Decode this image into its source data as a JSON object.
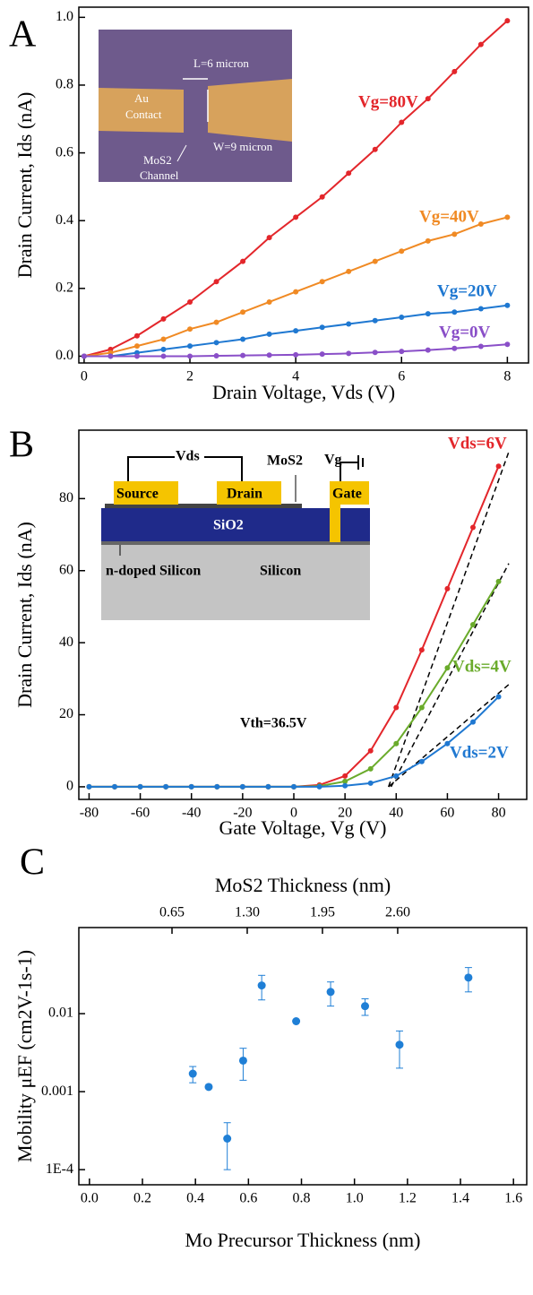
{
  "chart_data": [
    {
      "panel": "A",
      "type": "line",
      "x": [
        0,
        0.5,
        1,
        1.5,
        2,
        2.5,
        3,
        3.5,
        4,
        4.5,
        5,
        5.5,
        6,
        6.5,
        7,
        7.5,
        8
      ],
      "xlim": [
        -0.1,
        8.4
      ],
      "xticks": [
        0,
        2,
        4,
        6,
        8
      ],
      "ylim": [
        -0.02,
        1.03
      ],
      "yticks": [
        {
          "value": 0,
          "label": "0.0"
        },
        0.2,
        0.4,
        0.6,
        0.8,
        {
          "value": 1,
          "label": "1.0"
        }
      ],
      "x_label": "Drain Voltage, Vds (V)",
      "y_label": "Drain Current, Ids (nA)",
      "series": [
        {
          "name": "Vg=80V",
          "color": "#e3262b",
          "values": [
            0,
            0.02,
            0.06,
            0.11,
            0.16,
            0.22,
            0.28,
            0.35,
            0.41,
            0.47,
            0.54,
            0.61,
            0.69,
            0.76,
            0.84,
            0.92,
            0.99
          ]
        },
        {
          "name": "Vg=40V",
          "color": "#f08a24",
          "values": [
            0,
            0.01,
            0.03,
            0.05,
            0.08,
            0.1,
            0.13,
            0.16,
            0.19,
            0.22,
            0.25,
            0.28,
            0.31,
            0.34,
            0.36,
            0.39,
            0.41
          ]
        },
        {
          "name": "Vg=20V",
          "color": "#1f78d1",
          "values": [
            0,
            0,
            0.01,
            0.02,
            0.03,
            0.04,
            0.05,
            0.065,
            0.075,
            0.085,
            0.095,
            0.105,
            0.115,
            0.125,
            0.13,
            0.14,
            0.15
          ]
        },
        {
          "name": "Vg=0V",
          "color": "#8a4fc8",
          "values": [
            0,
            0,
            0,
            0,
            0,
            0.001,
            0.002,
            0.003,
            0.004,
            0.006,
            0.008,
            0.011,
            0.014,
            0.018,
            0.023,
            0.029,
            0.035
          ]
        }
      ],
      "annotations": [
        "L=6 micron",
        "Au",
        "Contact",
        "MoS2",
        "Channel",
        "W=9 micron"
      ]
    },
    {
      "panel": "B",
      "type": "line",
      "x": [
        -80,
        -70,
        -60,
        -50,
        -40,
        -30,
        -20,
        -10,
        0,
        10,
        20,
        30,
        40,
        50,
        60,
        70,
        80
      ],
      "xlim": [
        -84,
        91
      ],
      "xticks": [
        -80,
        -60,
        -40,
        -20,
        0,
        20,
        40,
        60,
        80
      ],
      "ylim": [
        -3.5,
        99
      ],
      "yticks": [
        0,
        20,
        40,
        60,
        80
      ],
      "x_label": "Gate Voltage, Vg (V)",
      "y_label": "Drain Current, Ids (nA)",
      "series": [
        {
          "name": "Vds=6V",
          "color": "#e3262b",
          "values": [
            0,
            0,
            0,
            0,
            0,
            0,
            0,
            0,
            0,
            0.5,
            3,
            10,
            22,
            38,
            55,
            72,
            89
          ]
        },
        {
          "name": "Vds=4V",
          "color": "#6aab2b",
          "values": [
            0,
            0,
            0,
            0,
            0,
            0,
            0,
            0,
            0,
            0.2,
            1.5,
            5,
            12,
            22,
            33,
            45,
            57
          ]
        },
        {
          "name": "Vds=2V",
          "color": "#1f78d1",
          "values": [
            0,
            0,
            0,
            0,
            0,
            0,
            0,
            0,
            0,
            0,
            0.3,
            1,
            3,
            7,
            12,
            18,
            25
          ]
        }
      ],
      "fits": [
        {
          "x": [
            37,
            84
          ],
          "values": [
            0,
            93
          ]
        },
        {
          "x": [
            38,
            84
          ],
          "values": [
            0,
            62
          ]
        },
        {
          "x": [
            37,
            85
          ],
          "values": [
            0,
            29
          ]
        }
      ],
      "annotations": [
        "Vth=36.5V",
        "Vds",
        "MoS2",
        "Vg",
        "Source",
        "Drain",
        "Gate",
        "SiO2",
        "n-doped Silicon",
        "Silicon"
      ]
    },
    {
      "panel": "C",
      "type": "scatter",
      "ylog": true,
      "color": "#1f7fd6",
      "x": [
        0.39,
        0.45,
        0.52,
        0.58,
        0.65,
        0.78,
        0.91,
        1.04,
        1.17,
        1.43
      ],
      "values": [
        0.0017,
        0.00115,
        0.00025,
        0.0025,
        0.023,
        0.008,
        0.019,
        0.0125,
        0.004,
        0.029
      ],
      "errors": [
        0.0004,
        null,
        0.00015,
        0.0011,
        0.008,
        null,
        0.0065,
        0.003,
        0.002,
        0.01
      ],
      "xlim": [
        -0.04,
        1.65
      ],
      "xticks": [
        {
          "value": 0,
          "label": "0.0"
        },
        0.2,
        0.4,
        0.6,
        0.8,
        {
          "value": 1,
          "label": "1.0"
        },
        1.2,
        1.4,
        1.6
      ],
      "ylim": [
        6.4e-05,
        0.127
      ],
      "yticks": [
        {
          "value": 0.0001,
          "label": "1E-4"
        },
        0.001,
        0.01
      ],
      "x2lim": [
        -0.155,
        3.715
      ],
      "x2ticks": [
        0.65,
        {
          "value": 1.3,
          "label": "1.30"
        },
        1.95,
        {
          "value": 2.6,
          "label": "2.60"
        }
      ],
      "x_label": "Mo Precursor Thickness (nm)",
      "x2_label": "MoS2 Thickness (nm)",
      "y_label": "Mobility μEF (cm2V-1s-1)"
    }
  ]
}
